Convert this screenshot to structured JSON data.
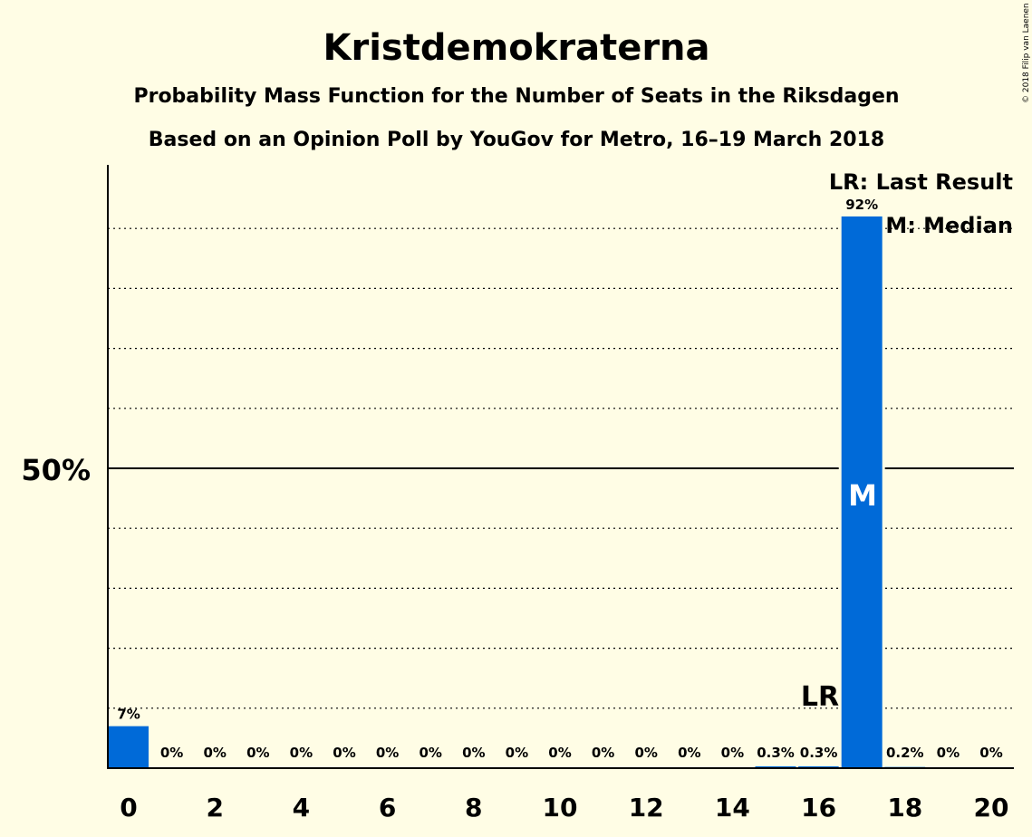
{
  "chart_data": {
    "type": "bar",
    "title": "Kristdemokraterna",
    "subtitle_line1": "Probability Mass Function for the Number of Seats in the Riksdagen",
    "subtitle_line2": "Based on an Opinion Poll by YouGov for Metro, 16–19 March 2018",
    "copyright": "© 2018 Filip van Laenen",
    "legend": {
      "lr": "LR: Last Result",
      "m": "M: Median"
    },
    "markers": {
      "last_result_seat": 16,
      "last_result_label": "LR",
      "median_seat": 17,
      "median_label": "M"
    },
    "x": [
      0,
      1,
      2,
      3,
      4,
      5,
      6,
      7,
      8,
      9,
      10,
      11,
      12,
      13,
      14,
      15,
      16,
      17,
      18,
      19,
      20
    ],
    "values": [
      7,
      0,
      0,
      0,
      0,
      0,
      0,
      0,
      0,
      0,
      0,
      0,
      0,
      0,
      0,
      0.3,
      0.3,
      92,
      0.2,
      0,
      0
    ],
    "value_labels": [
      "7%",
      "0%",
      "0%",
      "0%",
      "0%",
      "0%",
      "0%",
      "0%",
      "0%",
      "0%",
      "0%",
      "0%",
      "0%",
      "0%",
      "0%",
      "0.3%",
      "0.3%",
      "92%",
      "0.2%",
      "0%",
      "0%"
    ],
    "x_tick_labels": [
      "0",
      "2",
      "4",
      "6",
      "8",
      "10",
      "12",
      "14",
      "16",
      "18",
      "20"
    ],
    "y_tick_label": "50%",
    "ylim": [
      0,
      100
    ],
    "grid": "dotted every 10%, solid at 50%",
    "bar_color": "#006AD8"
  }
}
